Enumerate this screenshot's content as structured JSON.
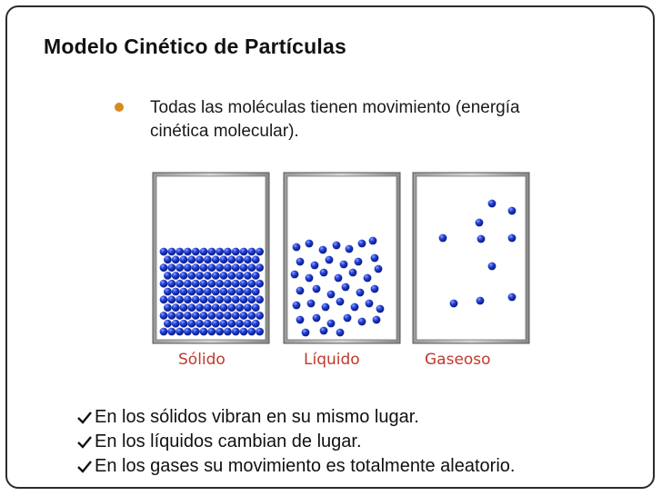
{
  "slide": {
    "title": "Modelo Cinético de Partículas",
    "bullet": "Todas las moléculas tienen movimiento (energía cinética molecular).",
    "states": [
      {
        "label": "Sólido",
        "arrangement": "ordered-lattice"
      },
      {
        "label": "Líquido",
        "arrangement": "close-disordered"
      },
      {
        "label": "Gaseoso",
        "arrangement": "sparse-random"
      }
    ],
    "statements": [
      "En los sólidos vibran en su mismo lugar.",
      "En los líquidos cambian de lugar.",
      "En los gases su movimiento es totalmente aleatorio."
    ]
  },
  "colors": {
    "accent_bullet": "#d98a1f",
    "particle": "#1f3fd6",
    "state_label": "#c0392b"
  },
  "icons": {
    "bullet": "bullet-dot-icon",
    "check": "check-arrow-icon"
  }
}
